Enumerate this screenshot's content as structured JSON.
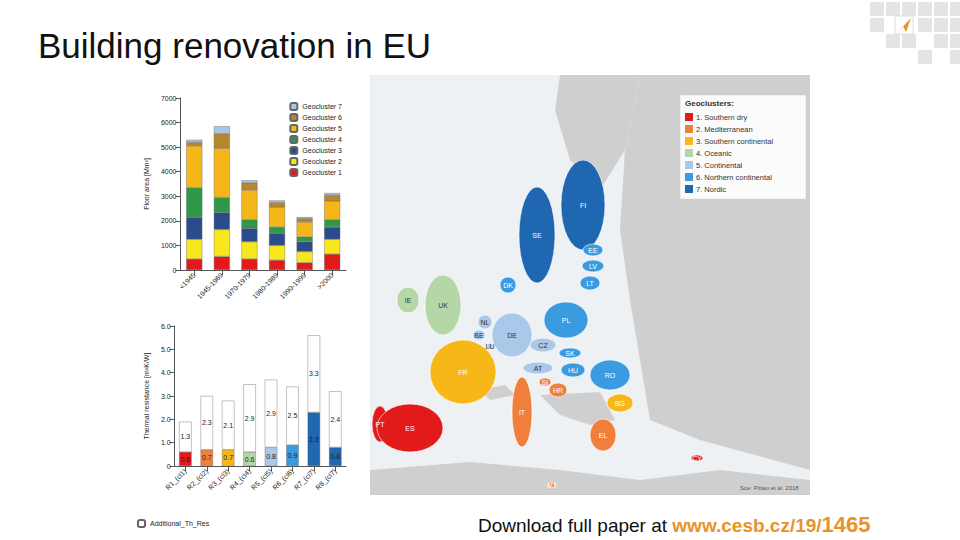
{
  "header": {
    "title": "Building renovation in EU"
  },
  "chart_data": [
    {
      "type": "bar",
      "stacked": true,
      "ylabel": "Floor area [Mm²]",
      "categories": [
        "<1945",
        "1945-1969",
        "1970-1979",
        "1980-1989",
        "1990-1999",
        ">2000"
      ],
      "series": [
        {
          "name": "Geocluster 1",
          "color": "#e31a1c",
          "values": [
            450,
            550,
            450,
            400,
            300,
            650
          ]
        },
        {
          "name": "Geocluster 2",
          "color": "#f8e71c",
          "values": [
            800,
            1100,
            700,
            600,
            450,
            600
          ]
        },
        {
          "name": "Geocluster 3",
          "color": "#2b4c8c",
          "values": [
            900,
            700,
            550,
            500,
            400,
            500
          ]
        },
        {
          "name": "Geocluster 4",
          "color": "#2e9a48",
          "values": [
            1200,
            600,
            350,
            250,
            200,
            300
          ]
        },
        {
          "name": "Geocluster 5",
          "color": "#f5b619",
          "values": [
            1700,
            2000,
            1200,
            800,
            600,
            750
          ]
        },
        {
          "name": "Geocluster 6",
          "color": "#b8862b",
          "values": [
            150,
            600,
            300,
            200,
            150,
            250
          ]
        },
        {
          "name": "Geocluster 7",
          "color": "#a6c8e8",
          "values": [
            100,
            300,
            100,
            80,
            50,
            80
          ]
        }
      ],
      "ylim": [
        0,
        7000
      ],
      "yticks": [
        0,
        1000,
        2000,
        3000,
        4000,
        5000,
        6000,
        7000
      ],
      "legend": "upper right",
      "grid": false
    },
    {
      "type": "bar",
      "stacked": true,
      "data_labels": true,
      "ylabel": "Thermal resistance [m²K/W]",
      "categories": [
        "R1_(cl1)",
        "R2_(cl2)",
        "R3_(cl3)",
        "R4_(cl4)",
        "R5_(cl5)",
        "R6_(cl6)",
        "R7_(cl7)",
        "R8_(cl7)"
      ],
      "series": [
        {
          "colors": [
            "#e31a1c",
            "#f07f3c",
            "#f7b719",
            "#b5d6a7",
            "#a9c8ea",
            "#3a9be0",
            "#1f67b1",
            "#1f67b1"
          ],
          "values": [
            0.6,
            0.7,
            0.7,
            0.6,
            0.8,
            0.9,
            2.3,
            0.8
          ]
        },
        {
          "name": "Additional_Th_Res",
          "color": "#ffffff",
          "values": [
            1.3,
            2.3,
            2.1,
            2.9,
            2.9,
            2.5,
            3.3,
            2.4
          ]
        }
      ],
      "ylim": [
        0,
        6
      ],
      "yticks": [
        0,
        {
          "value": 1,
          "label": "1.0"
        },
        {
          "value": 2,
          "label": "2.0"
        },
        {
          "value": 3,
          "label": "3.0"
        },
        {
          "value": 4,
          "label": "4.0"
        },
        {
          "value": 5,
          "label": "5.0"
        },
        {
          "value": 6,
          "label": "6.0"
        }
      ],
      "legend": "lower left",
      "grid": false
    }
  ],
  "map": {
    "legend_title": "Geoclusters:",
    "clusters": [
      {
        "label": "1. Southern dry",
        "color": "#e31a1c"
      },
      {
        "label": "2. Mediterranean",
        "color": "#f07f3c"
      },
      {
        "label": "3. Southern continental",
        "color": "#f7b719"
      },
      {
        "label": "4. Oceanic",
        "color": "#b5d6a7"
      },
      {
        "label": "5. Continental",
        "color": "#a9c8ea"
      },
      {
        "label": "6. Northern continental",
        "color": "#3a9be0"
      },
      {
        "label": "7. Nordic",
        "color": "#1f67b1"
      }
    ],
    "countries": [
      {
        "code": "FI",
        "cluster": 7
      },
      {
        "code": "SE",
        "cluster": 7
      },
      {
        "code": "EE",
        "cluster": 6
      },
      {
        "code": "LV",
        "cluster": 6
      },
      {
        "code": "LT",
        "cluster": 6
      },
      {
        "code": "DK",
        "cluster": 6
      },
      {
        "code": "IE",
        "cluster": 4
      },
      {
        "code": "UK",
        "cluster": 4
      },
      {
        "code": "NL",
        "cluster": 5
      },
      {
        "code": "BE",
        "cluster": 5
      },
      {
        "code": "LU",
        "cluster": 5
      },
      {
        "code": "DE",
        "cluster": 5
      },
      {
        "code": "PL",
        "cluster": 6
      },
      {
        "code": "CZ",
        "cluster": 5
      },
      {
        "code": "SK",
        "cluster": 6
      },
      {
        "code": "AT",
        "cluster": 5
      },
      {
        "code": "HU",
        "cluster": 6
      },
      {
        "code": "RO",
        "cluster": 6
      },
      {
        "code": "SI",
        "cluster": 2
      },
      {
        "code": "HR",
        "cluster": 2
      },
      {
        "code": "FR",
        "cluster": 3
      },
      {
        "code": "PT",
        "cluster": 1
      },
      {
        "code": "ES",
        "cluster": 1
      },
      {
        "code": "IT",
        "cluster": 2
      },
      {
        "code": "BG",
        "cluster": 3
      },
      {
        "code": "EL",
        "cluster": 2
      },
      {
        "code": "CY",
        "cluster": 1
      },
      {
        "code": "MT",
        "cluster": 2
      }
    ],
    "source": "Sce: Pittau et al. 2018"
  },
  "footer": {
    "text": "Download full paper at ",
    "link": "www.cesb.cz/19/",
    "number": "1465"
  }
}
